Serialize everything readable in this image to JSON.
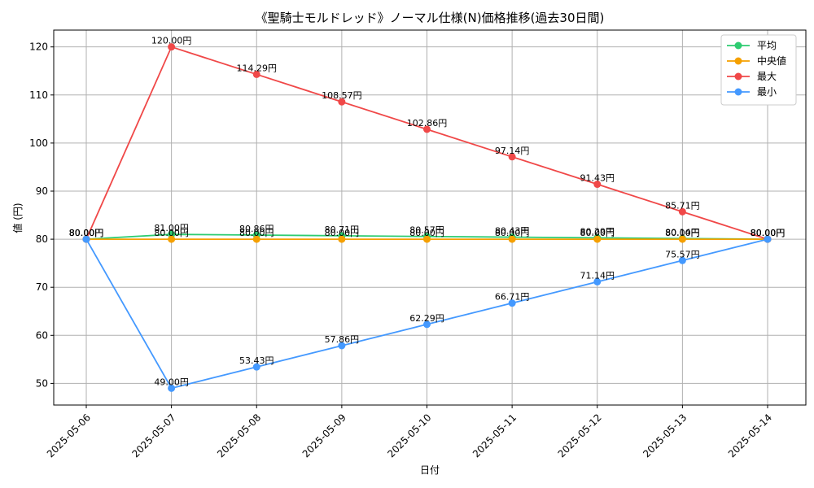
{
  "chart_data": {
    "type": "line",
    "title": "《聖騎士モルドレッド》ノーマル仕様(N)価格推移(過去30日間)",
    "xlabel": "日付",
    "ylabel": "値 (円)",
    "x": [
      "2025-05-06",
      "2025-05-07",
      "2025-05-08",
      "2025-05-09",
      "2025-05-10",
      "2025-05-11",
      "2025-05-12",
      "2025-05-13",
      "2025-05-14"
    ],
    "ylim": [
      45.5,
      123.5
    ],
    "yticks": [
      50,
      60,
      70,
      80,
      90,
      100,
      110,
      120
    ],
    "grid": true,
    "legend_position": "top-right",
    "value_suffix": "円",
    "series": [
      {
        "name": "平均",
        "color": "#2ecc71",
        "values": [
          80.0,
          81.0,
          80.86,
          80.71,
          80.57,
          80.43,
          80.29,
          80.14,
          80.0
        ]
      },
      {
        "name": "中央値",
        "color": "#f5a000",
        "values": [
          80.0,
          80.0,
          80.0,
          80.0,
          80.0,
          80.0,
          80.0,
          80.0,
          80.0
        ]
      },
      {
        "name": "最大",
        "color": "#f04848",
        "values": [
          80.0,
          120.0,
          114.29,
          108.57,
          102.86,
          97.14,
          91.43,
          85.71,
          80.0
        ]
      },
      {
        "name": "最小",
        "color": "#4499ff",
        "values": [
          80.0,
          49.0,
          53.43,
          57.86,
          62.29,
          66.71,
          71.14,
          75.57,
          80.0
        ]
      }
    ]
  }
}
